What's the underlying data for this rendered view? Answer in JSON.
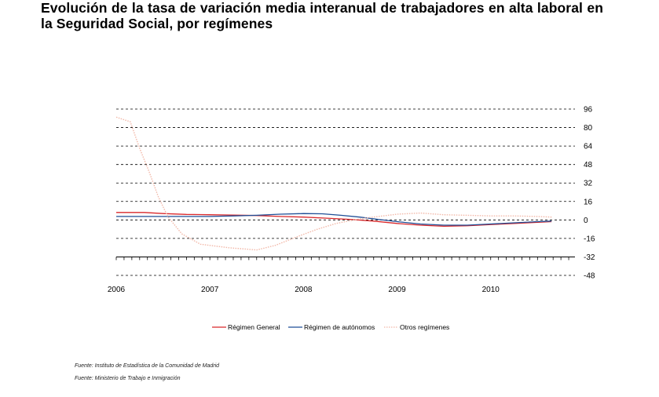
{
  "title": "Evolución de la tasa de variación media interanual de trabajadores en alta laboral en la Seguridad Social, por  regímenes",
  "sources": [
    "Fuente: Instituto de Estadística de la Comunidad de Madrid",
    "Fuente: Ministerio de Trabajo e Inmigración"
  ],
  "chart_data": {
    "type": "line",
    "title": "Evolución de la tasa de variación media interanual de trabajadores en alta laboral en la Seguridad Social, por  regímenes",
    "xlabel": "",
    "ylabel": "",
    "x_ticks": [
      "2006",
      "2007",
      "2008",
      "2009",
      "2010"
    ],
    "xlim": [
      2006.0,
      2010.9
    ],
    "y_ticks": [
      96,
      80,
      64,
      48,
      32,
      16,
      0,
      -16,
      -32,
      -48
    ],
    "ylim": [
      -48,
      96
    ],
    "grid": true,
    "y_axis_position": "right",
    "legend_position": "bottom",
    "series": [
      {
        "name": "Régimen General",
        "color": "#d9282b",
        "style": "solid",
        "points": [
          [
            2006.0,
            6.5
          ],
          [
            2006.3,
            6.5
          ],
          [
            2006.5,
            5.5
          ],
          [
            2006.75,
            4.8
          ],
          [
            2007.0,
            4.5
          ],
          [
            2007.25,
            4.2
          ],
          [
            2007.5,
            3.8
          ],
          [
            2007.75,
            3.0
          ],
          [
            2008.0,
            2.5
          ],
          [
            2008.25,
            1.5
          ],
          [
            2008.5,
            0.5
          ],
          [
            2008.75,
            -1.0
          ],
          [
            2009.0,
            -3.0
          ],
          [
            2009.25,
            -4.5
          ],
          [
            2009.5,
            -5.5
          ],
          [
            2009.75,
            -5.0
          ],
          [
            2010.0,
            -4.0
          ],
          [
            2010.25,
            -3.0
          ],
          [
            2010.5,
            -2.0
          ],
          [
            2010.65,
            -1.5
          ]
        ]
      },
      {
        "name": "Régimen de autónomos",
        "color": "#1f4e96",
        "style": "solid",
        "points": [
          [
            2006.0,
            3.0
          ],
          [
            2006.25,
            3.0
          ],
          [
            2006.5,
            3.0
          ],
          [
            2006.75,
            3.0
          ],
          [
            2007.0,
            3.0
          ],
          [
            2007.25,
            3.5
          ],
          [
            2007.5,
            4.0
          ],
          [
            2007.75,
            5.0
          ],
          [
            2008.0,
            5.5
          ],
          [
            2008.2,
            5.3
          ],
          [
            2008.4,
            4.0
          ],
          [
            2008.6,
            2.5
          ],
          [
            2008.8,
            0.5
          ],
          [
            2009.0,
            -1.5
          ],
          [
            2009.25,
            -3.5
          ],
          [
            2009.5,
            -4.5
          ],
          [
            2009.75,
            -4.5
          ],
          [
            2010.0,
            -3.5
          ],
          [
            2010.25,
            -2.5
          ],
          [
            2010.5,
            -1.5
          ],
          [
            2010.65,
            -1.0
          ]
        ]
      },
      {
        "name": "Otros regímenes",
        "color": "#f2b8a8",
        "style": "dotted",
        "points": [
          [
            2006.0,
            89.0
          ],
          [
            2006.15,
            85.0
          ],
          [
            2006.25,
            62.0
          ],
          [
            2006.35,
            42.0
          ],
          [
            2006.45,
            20.0
          ],
          [
            2006.55,
            3.0
          ],
          [
            2006.7,
            -12.0
          ],
          [
            2006.9,
            -21.0
          ],
          [
            2007.2,
            -24.0
          ],
          [
            2007.5,
            -26.0
          ],
          [
            2007.7,
            -22.0
          ],
          [
            2007.95,
            -14.0
          ],
          [
            2008.15,
            -8.0
          ],
          [
            2008.35,
            -3.0
          ],
          [
            2008.6,
            1.0
          ],
          [
            2008.8,
            3.0
          ],
          [
            2009.0,
            5.0
          ],
          [
            2009.25,
            6.0
          ],
          [
            2009.5,
            4.5
          ],
          [
            2009.75,
            4.0
          ],
          [
            2010.0,
            3.5
          ],
          [
            2010.25,
            3.5
          ],
          [
            2010.5,
            3.0
          ],
          [
            2010.65,
            2.5
          ]
        ]
      }
    ]
  }
}
